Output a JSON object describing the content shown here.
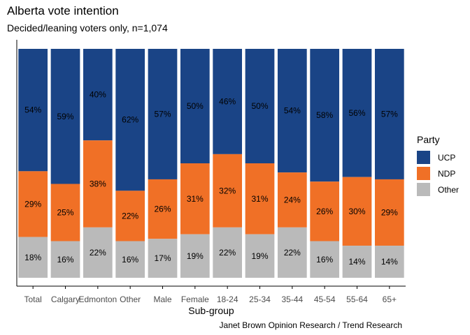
{
  "title": "Alberta vote intention",
  "subtitle": "Decided/leaning voters only, n=1,074",
  "caption": "Janet Brown Opinion Research / Trend Research",
  "chart_data": {
    "type": "bar",
    "stacked": true,
    "xlabel": "Sub-group",
    "ylabel": "",
    "ylim": [
      0,
      100
    ],
    "categories": [
      "Total",
      "Calgary",
      "Edmonton",
      "Other",
      "Male",
      "Female",
      "18-24",
      "25-34",
      "35-44",
      "45-54",
      "55-64",
      "65+"
    ],
    "series": [
      {
        "name": "UCP",
        "color": "#1a4486",
        "values": [
          54,
          59,
          40,
          62,
          57,
          50,
          46,
          50,
          54,
          58,
          56,
          57
        ],
        "labels": [
          "54%",
          "59%",
          "40%",
          "62%",
          "57%",
          "50%",
          "46%",
          "50%",
          "54%",
          "58%",
          "56%",
          "57%"
        ]
      },
      {
        "name": "NDP",
        "color": "#f07026",
        "values": [
          29,
          25,
          38,
          22,
          26,
          31,
          32,
          31,
          24,
          26,
          30,
          29
        ],
        "labels": [
          "29%",
          "25%",
          "38%",
          "22%",
          "26%",
          "31%",
          "32%",
          "31%",
          "24%",
          "26%",
          "30%",
          "29%"
        ]
      },
      {
        "name": "Other",
        "color": "#bababa",
        "values": [
          18,
          16,
          22,
          16,
          17,
          19,
          22,
          19,
          22,
          16,
          14,
          14
        ],
        "labels": [
          "18%",
          "16%",
          "22%",
          "16%",
          "17%",
          "19%",
          "22%",
          "19%",
          "22%",
          "16%",
          "14%",
          "14%"
        ]
      }
    ],
    "grid": false,
    "legend_title": "Party",
    "legend_position": "right"
  }
}
